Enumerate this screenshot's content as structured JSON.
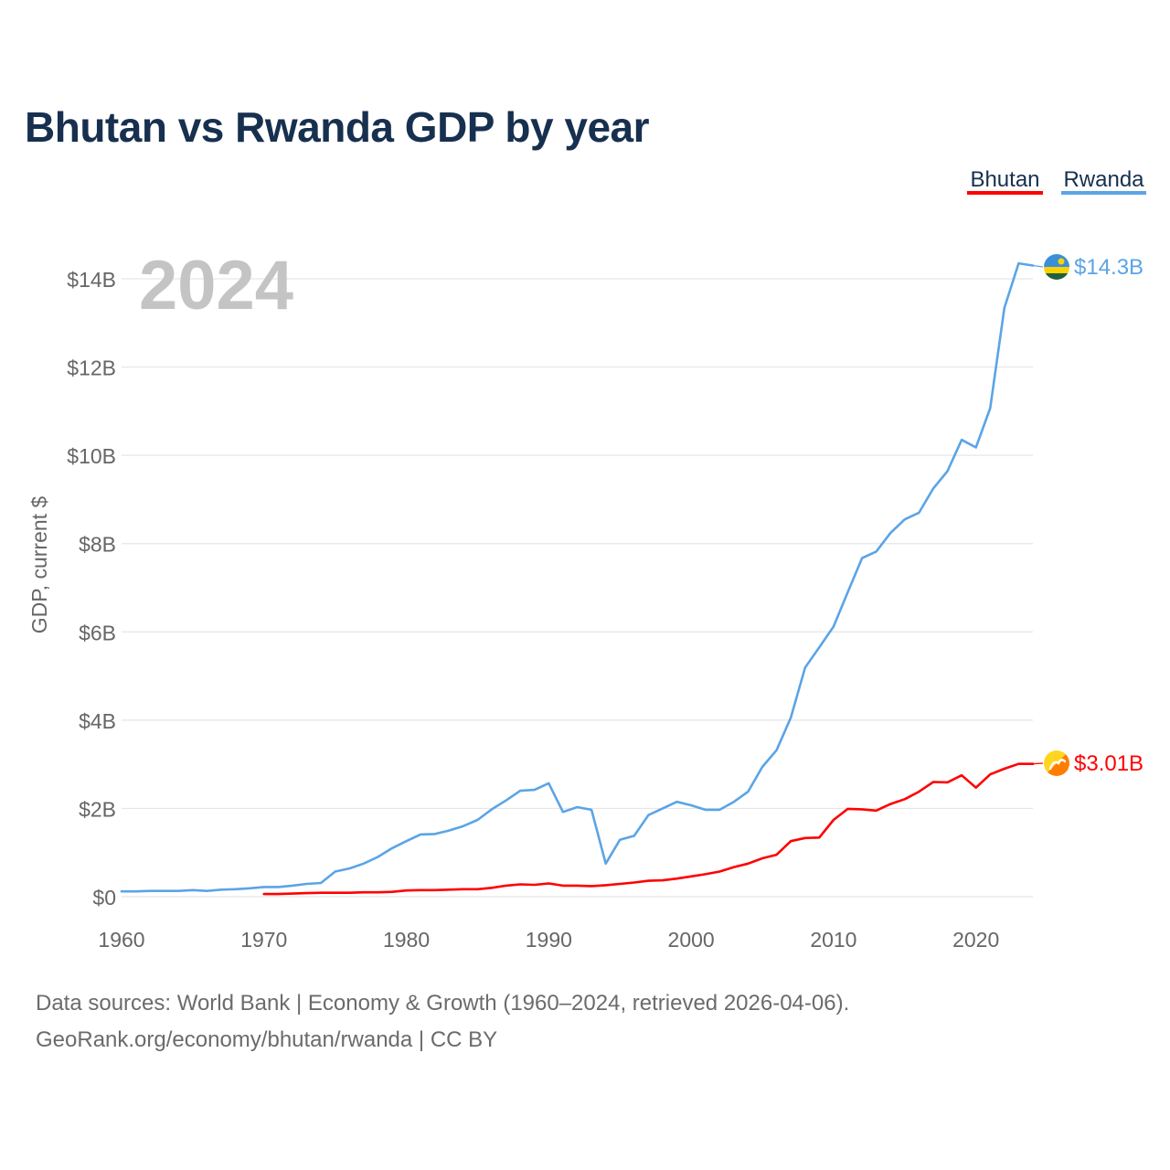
{
  "colors": {
    "title": "#17304f",
    "bhutan": "#ff0000",
    "rwanda": "#5ba4e6",
    "grid": "#e6e6e6",
    "axis_text": "#666666",
    "year_watermark": "#c4c4c4"
  },
  "chart_data": {
    "type": "line",
    "title": "Bhutan vs Rwanda GDP by year",
    "xlabel": "",
    "ylabel": "GDP, current $",
    "xlim": [
      1960,
      2024
    ],
    "ylim": [
      0,
      14.6
    ],
    "x_ticks": [
      1960,
      1970,
      1980,
      1990,
      2000,
      2010,
      2020
    ],
    "x_tick_labels": [
      "1960",
      "1970",
      "1980",
      "1990",
      "2000",
      "2010",
      "2020"
    ],
    "y_ticks": [
      0,
      2,
      4,
      6,
      8,
      10,
      12,
      14
    ],
    "y_tick_labels": [
      "$0",
      "$2B",
      "$4B",
      "$6B",
      "$8B",
      "$10B",
      "$12B",
      "$14B"
    ],
    "units": "billions of current US$",
    "current_year_label": "2024",
    "legend": [
      "Bhutan",
      "Rwanda"
    ],
    "legend_position": "top-right",
    "series": [
      {
        "name": "Rwanda",
        "color": "#5ba4e6",
        "flag": "rwanda-flag",
        "end_label": "$14.3B",
        "x": [
          1960,
          1961,
          1962,
          1963,
          1964,
          1965,
          1966,
          1967,
          1968,
          1969,
          1970,
          1971,
          1972,
          1973,
          1974,
          1975,
          1976,
          1977,
          1978,
          1979,
          1980,
          1981,
          1982,
          1983,
          1984,
          1985,
          1986,
          1987,
          1988,
          1989,
          1990,
          1991,
          1992,
          1993,
          1994,
          1995,
          1996,
          1997,
          1998,
          1999,
          2000,
          2001,
          2002,
          2003,
          2004,
          2005,
          2006,
          2007,
          2008,
          2009,
          2010,
          2011,
          2012,
          2013,
          2014,
          2015,
          2016,
          2017,
          2018,
          2019,
          2020,
          2021,
          2022,
          2023,
          2024
        ],
        "values": [
          0.12,
          0.12,
          0.13,
          0.13,
          0.13,
          0.15,
          0.13,
          0.16,
          0.17,
          0.19,
          0.22,
          0.22,
          0.25,
          0.29,
          0.31,
          0.57,
          0.64,
          0.75,
          0.9,
          1.1,
          1.26,
          1.41,
          1.42,
          1.5,
          1.6,
          1.74,
          1.98,
          2.18,
          2.4,
          2.42,
          2.57,
          1.92,
          2.03,
          1.97,
          0.75,
          1.29,
          1.38,
          1.85,
          2.0,
          2.15,
          2.07,
          1.97,
          1.97,
          2.15,
          2.38,
          2.94,
          3.32,
          4.06,
          5.19,
          5.65,
          6.12,
          6.9,
          7.67,
          7.82,
          8.24,
          8.55,
          8.7,
          9.25,
          9.64,
          10.35,
          10.18,
          11.07,
          13.34,
          14.35,
          14.3
        ]
      },
      {
        "name": "Bhutan",
        "color": "#ff0000",
        "flag": "bhutan-flag",
        "end_label": "$3.01B",
        "x": [
          1970,
          1971,
          1972,
          1973,
          1974,
          1975,
          1976,
          1977,
          1978,
          1979,
          1980,
          1981,
          1982,
          1983,
          1984,
          1985,
          1986,
          1987,
          1988,
          1989,
          1990,
          1991,
          1992,
          1993,
          1994,
          1995,
          1996,
          1997,
          1998,
          1999,
          2000,
          2001,
          2002,
          2003,
          2004,
          2005,
          2006,
          2007,
          2008,
          2009,
          2010,
          2011,
          2012,
          2013,
          2014,
          2015,
          2016,
          2017,
          2018,
          2019,
          2020,
          2021,
          2022,
          2023,
          2024
        ],
        "values": [
          0.06,
          0.06,
          0.07,
          0.08,
          0.09,
          0.09,
          0.09,
          0.1,
          0.1,
          0.11,
          0.14,
          0.15,
          0.15,
          0.16,
          0.17,
          0.17,
          0.2,
          0.25,
          0.28,
          0.27,
          0.3,
          0.25,
          0.25,
          0.24,
          0.26,
          0.29,
          0.32,
          0.36,
          0.37,
          0.41,
          0.46,
          0.51,
          0.57,
          0.67,
          0.75,
          0.87,
          0.95,
          1.26,
          1.33,
          1.34,
          1.74,
          1.99,
          1.98,
          1.95,
          2.1,
          2.21,
          2.38,
          2.6,
          2.59,
          2.75,
          2.47,
          2.77,
          2.9,
          3.01,
          3.01
        ]
      }
    ]
  },
  "footer": {
    "source": "Data sources: World Bank | Economy & Growth (1960–2024, retrieved 2026-04-06).",
    "credit": "GeoRank.org/economy/bhutan/rwanda | CC BY"
  }
}
